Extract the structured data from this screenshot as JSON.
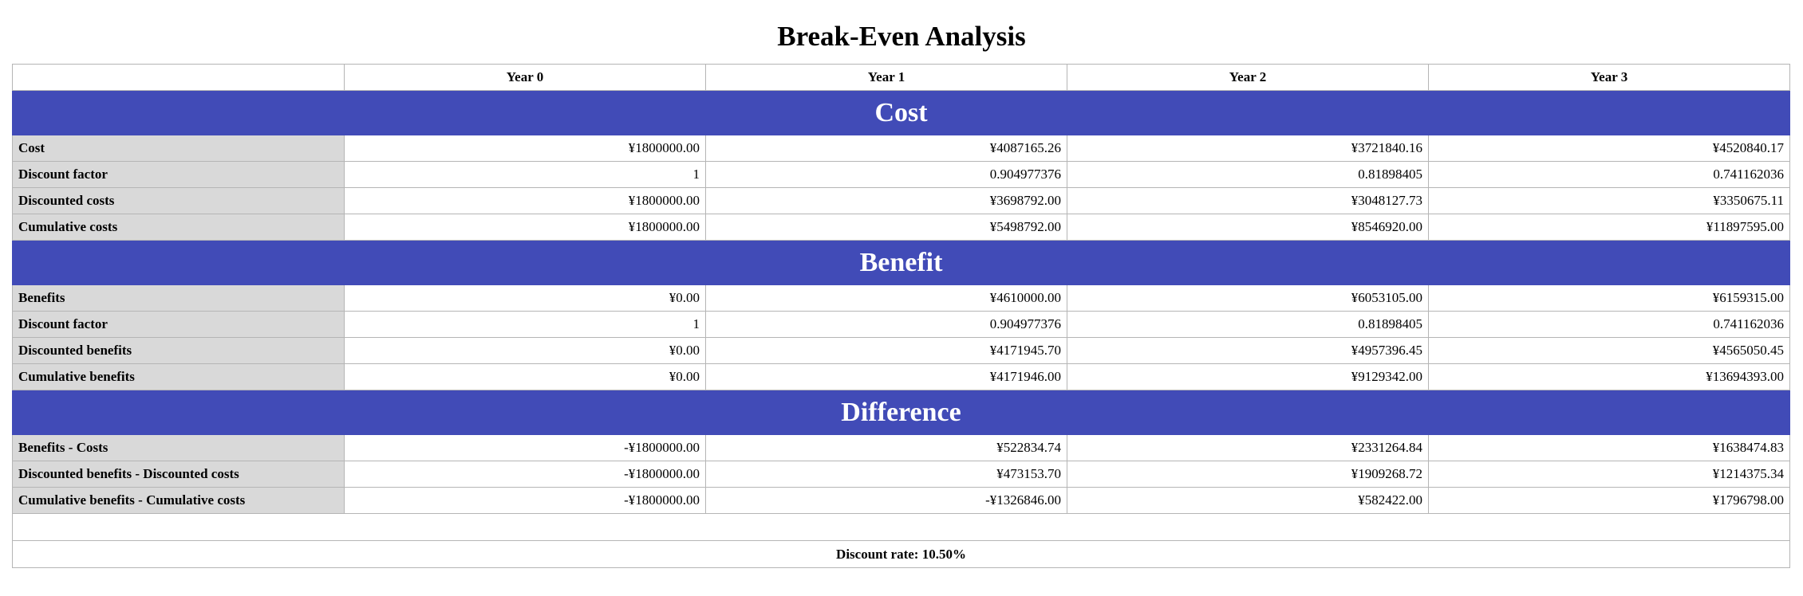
{
  "title": "Break-Even Analysis",
  "columns": [
    "Year 0",
    "Year 1",
    "Year 2",
    "Year 3"
  ],
  "sections": [
    {
      "name": "Cost",
      "rows": [
        {
          "label": "Cost",
          "values": [
            "¥1800000.00",
            "¥4087165.26",
            "¥3721840.16",
            "¥4520840.17"
          ]
        },
        {
          "label": "Discount factor",
          "values": [
            "1",
            "0.904977376",
            "0.81898405",
            "0.741162036"
          ]
        },
        {
          "label": "Discounted costs",
          "values": [
            "¥1800000.00",
            "¥3698792.00",
            "¥3048127.73",
            "¥3350675.11"
          ]
        },
        {
          "label": "Cumulative costs",
          "values": [
            "¥1800000.00",
            "¥5498792.00",
            "¥8546920.00",
            "¥11897595.00"
          ]
        }
      ]
    },
    {
      "name": "Benefit",
      "rows": [
        {
          "label": "Benefits",
          "values": [
            "¥0.00",
            "¥4610000.00",
            "¥6053105.00",
            "¥6159315.00"
          ]
        },
        {
          "label": "Discount factor",
          "values": [
            "1",
            "0.904977376",
            "0.81898405",
            "0.741162036"
          ]
        },
        {
          "label": "Discounted benefits",
          "values": [
            "¥0.00",
            "¥4171945.70",
            "¥4957396.45",
            "¥4565050.45"
          ]
        },
        {
          "label": "Cumulative benefits",
          "values": [
            "¥0.00",
            "¥4171946.00",
            "¥9129342.00",
            "¥13694393.00"
          ]
        }
      ]
    },
    {
      "name": "Difference",
      "rows": [
        {
          "label": "Benefits - Costs",
          "values": [
            "-¥1800000.00",
            "¥522834.74",
            "¥2331264.84",
            "¥1638474.83"
          ]
        },
        {
          "label": "Discounted benefits - Discounted costs",
          "values": [
            "-¥1800000.00",
            "¥473153.70",
            "¥1909268.72",
            "¥1214375.34"
          ]
        },
        {
          "label": "Cumulative benefits - Cumulative costs",
          "values": [
            "-¥1800000.00",
            "-¥1326846.00",
            "¥582422.00",
            "¥1796798.00"
          ]
        }
      ]
    }
  ],
  "footer": "Discount rate: 10.50%"
}
